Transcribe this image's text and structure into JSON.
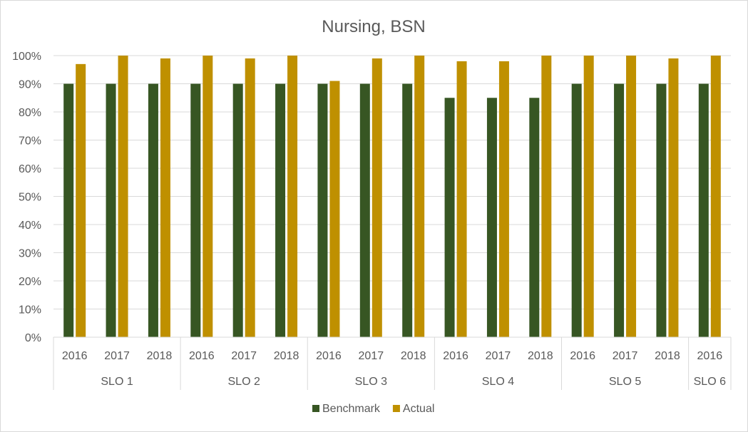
{
  "chart_data": {
    "type": "bar",
    "title": "Nursing, BSN",
    "xlabel": "",
    "ylabel": "",
    "ylim": [
      0,
      100
    ],
    "y_ticks": [
      "0%",
      "10%",
      "20%",
      "30%",
      "40%",
      "50%",
      "60%",
      "70%",
      "80%",
      "90%",
      "100%"
    ],
    "grid": true,
    "legend_position": "bottom",
    "groups": [
      {
        "label": "SLO 1",
        "years": [
          "2016",
          "2017",
          "2018"
        ]
      },
      {
        "label": "SLO 2",
        "years": [
          "2016",
          "2017",
          "2018"
        ]
      },
      {
        "label": "SLO 3",
        "years": [
          "2016",
          "2017",
          "2018"
        ]
      },
      {
        "label": "SLO 4",
        "years": [
          "2016",
          "2017",
          "2018"
        ]
      },
      {
        "label": "SLO 5",
        "years": [
          "2016",
          "2017",
          "2018"
        ]
      },
      {
        "label": "SLO 6",
        "years": [
          "2016"
        ]
      }
    ],
    "series": [
      {
        "name": "Benchmark",
        "color": "#375623",
        "values": [
          90,
          90,
          90,
          90,
          90,
          90,
          90,
          90,
          90,
          85,
          85,
          85,
          90,
          90,
          90,
          90
        ]
      },
      {
        "name": "Actual",
        "color": "#bf9000",
        "values": [
          97,
          100,
          99,
          100,
          99,
          100,
          91,
          99,
          100,
          98,
          98,
          100,
          100,
          100,
          99,
          100
        ]
      }
    ]
  }
}
